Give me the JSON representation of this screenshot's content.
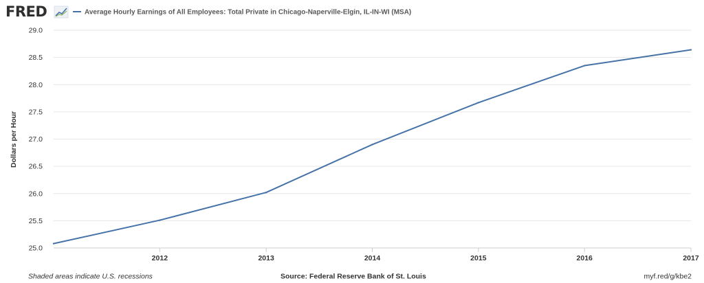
{
  "brand": {
    "logo_text": "FRED",
    "logo_icon": "line-chart-icon"
  },
  "legend": {
    "label": "Average Hourly Earnings of All Employees: Total Private in Chicago-Naperville-Elgin, IL-IN-WI (MSA)"
  },
  "footer": {
    "recession_note": "Shaded areas indicate U.S. recessions",
    "source": "Source: Federal Reserve Bank of St. Louis",
    "short_url": "myf.red/g/kbe2"
  },
  "colors": {
    "series_line": "#4572a7",
    "grid": "#e6e6e6",
    "text": "#333333"
  },
  "chart_data": {
    "type": "line",
    "title": "",
    "ylabel": "Dollars per Hour",
    "xlabel": "",
    "ylim": [
      25.0,
      29.0
    ],
    "yticks": [
      "25.0",
      "25.5",
      "26.0",
      "26.5",
      "27.0",
      "27.5",
      "28.0",
      "28.5",
      "29.0"
    ],
    "xlim": [
      "2011-01-01",
      "2017-01-01"
    ],
    "xticks": [
      "2012",
      "2013",
      "2014",
      "2015",
      "2016",
      "2017"
    ],
    "grid": true,
    "legend_position": "top",
    "series": [
      {
        "name": "Average Hourly Earnings of All Employees: Total Private in Chicago-Naperville-Elgin, IL-IN-WI (MSA)",
        "x": [
          "2011-01-01",
          "2012-01-01",
          "2013-01-01",
          "2014-01-01",
          "2015-01-01",
          "2016-01-01",
          "2017-01-01"
        ],
        "values": [
          25.08,
          25.51,
          26.02,
          26.9,
          27.67,
          28.35,
          28.64
        ]
      }
    ]
  }
}
